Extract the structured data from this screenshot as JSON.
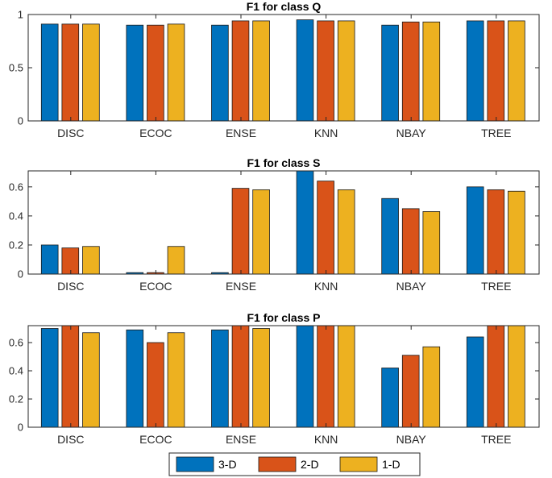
{
  "chart_data": [
    {
      "type": "bar",
      "title": "F1 for class Q",
      "categories": [
        "DISC",
        "ECOC",
        "ENSE",
        "KNN",
        "NBAY",
        "TREE"
      ],
      "series": [
        {
          "name": "3-D",
          "values": [
            0.91,
            0.9,
            0.9,
            0.95,
            0.9,
            0.94
          ]
        },
        {
          "name": "2-D",
          "values": [
            0.91,
            0.9,
            0.94,
            0.94,
            0.93,
            0.94
          ]
        },
        {
          "name": "1-D",
          "values": [
            0.91,
            0.91,
            0.94,
            0.94,
            0.93,
            0.94
          ]
        }
      ],
      "ylim": [
        0,
        1
      ],
      "yticks": [
        0,
        0.5,
        1
      ],
      "ytick_labels": [
        "0",
        "0.5",
        "1"
      ],
      "grid": false
    },
    {
      "type": "bar",
      "title": "F1 for class S",
      "categories": [
        "DISC",
        "ECOC",
        "ENSE",
        "KNN",
        "NBAY",
        "TREE"
      ],
      "series": [
        {
          "name": "3-D",
          "values": [
            0.2,
            0.01,
            0.01,
            0.71,
            0.52,
            0.6
          ]
        },
        {
          "name": "2-D",
          "values": [
            0.18,
            0.01,
            0.59,
            0.64,
            0.45,
            0.58
          ]
        },
        {
          "name": "1-D",
          "values": [
            0.19,
            0.19,
            0.58,
            0.58,
            0.43,
            0.57
          ]
        }
      ],
      "ylim": [
        0,
        0.71
      ],
      "yticks": [
        0,
        0.2,
        0.4,
        0.6
      ],
      "ytick_labels": [
        "0",
        "0.2",
        "0.4",
        "0.6"
      ],
      "grid": false
    },
    {
      "type": "bar",
      "title": "F1 for class P",
      "categories": [
        "DISC",
        "ECOC",
        "ENSE",
        "KNN",
        "NBAY",
        "TREE"
      ],
      "series": [
        {
          "name": "3-D",
          "values": [
            0.7,
            0.69,
            0.69,
            0.72,
            0.42,
            0.64
          ]
        },
        {
          "name": "2-D",
          "values": [
            0.72,
            0.6,
            0.72,
            0.72,
            0.51,
            0.72
          ]
        },
        {
          "name": "1-D",
          "values": [
            0.67,
            0.67,
            0.7,
            0.72,
            0.57,
            0.72
          ]
        }
      ],
      "ylim": [
        0,
        0.72
      ],
      "yticks": [
        0,
        0.2,
        0.4,
        0.6
      ],
      "ytick_labels": [
        "0",
        "0.2",
        "0.4",
        "0.6"
      ],
      "grid": false
    }
  ],
  "legend": {
    "placement": "bottom-center",
    "entries": [
      "3-D",
      "2-D",
      "1-D"
    ]
  },
  "colors": {
    "series": [
      "#0072BD",
      "#D95319",
      "#EDB120"
    ],
    "axis": "#262626",
    "bar_edge": "#1a1a1a"
  }
}
